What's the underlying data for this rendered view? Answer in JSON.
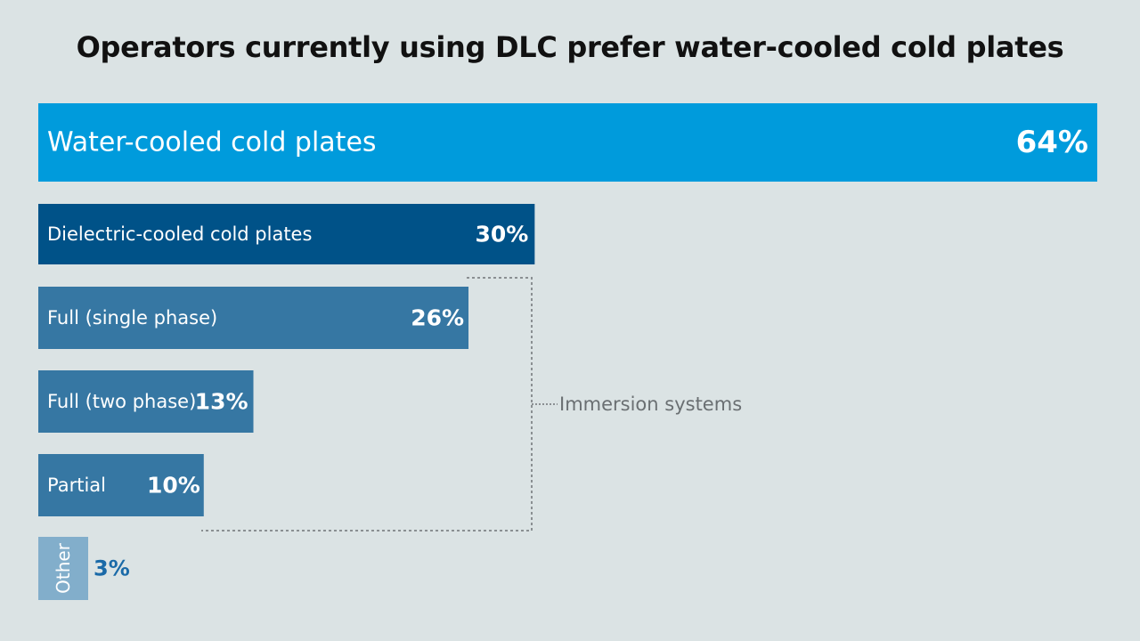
{
  "chart_data": {
    "type": "bar",
    "orientation": "horizontal",
    "title": "Operators currently using DLC prefer water-cooled cold plates",
    "unit": "%",
    "xlim": [
      0,
      64
    ],
    "grid": false,
    "bars": [
      {
        "label": "Water-cooled cold plates",
        "value": 64,
        "value_label": "64%",
        "color": "#009bdc"
      },
      {
        "label": "Dielectric-cooled cold plates",
        "value": 30,
        "value_label": "30%",
        "color": "#005288"
      },
      {
        "label": "Full (single phase)",
        "value": 26,
        "value_label": "26%",
        "color": "#3677a3"
      },
      {
        "label": "Full (two phase)",
        "value": 13,
        "value_label": "13%",
        "color": "#3677a3"
      },
      {
        "label": "Partial",
        "value": 10,
        "value_label": "10%",
        "color": "#3677a3"
      },
      {
        "label": "Other",
        "value": 3,
        "value_label": "3%",
        "color": "#82aecb",
        "value_color": "#1a6aa8"
      }
    ],
    "annotation": {
      "label": "Immersion systems",
      "applies_to": [
        "Full (single phase)",
        "Full (two phase)",
        "Partial"
      ]
    }
  }
}
